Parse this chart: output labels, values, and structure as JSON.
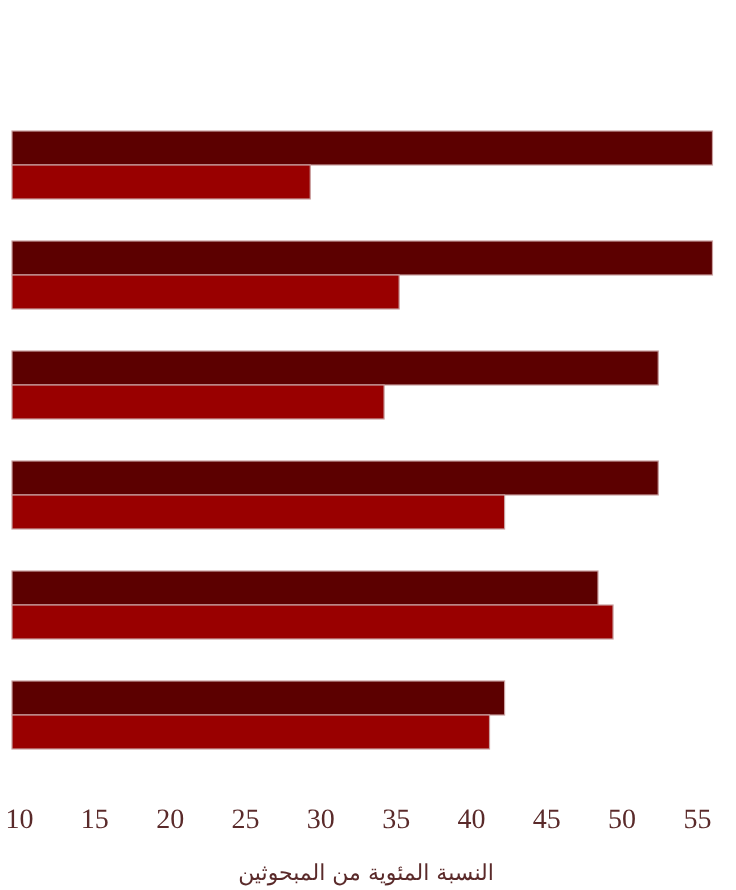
{
  "chart_data": {
    "type": "bar",
    "orientation": "horizontal",
    "xlabel": "النسبة المئوية من المبحوثين",
    "categories": [
      null,
      null,
      null,
      null,
      null,
      null
    ],
    "series": [
      {
        "color": "#5c0000",
        "values": [
          56,
          56,
          52.4,
          52.4,
          48.4,
          42.2
        ]
      },
      {
        "color": "#990000",
        "values": [
          29.3,
          35.2,
          34.2,
          42.2,
          49.4,
          41.2
        ]
      }
    ],
    "xlim": [
      9.5,
      56.5
    ],
    "xticks": [
      10,
      15,
      20,
      25,
      30,
      35,
      40,
      45,
      50,
      55
    ],
    "tick_labels": "x"
  }
}
